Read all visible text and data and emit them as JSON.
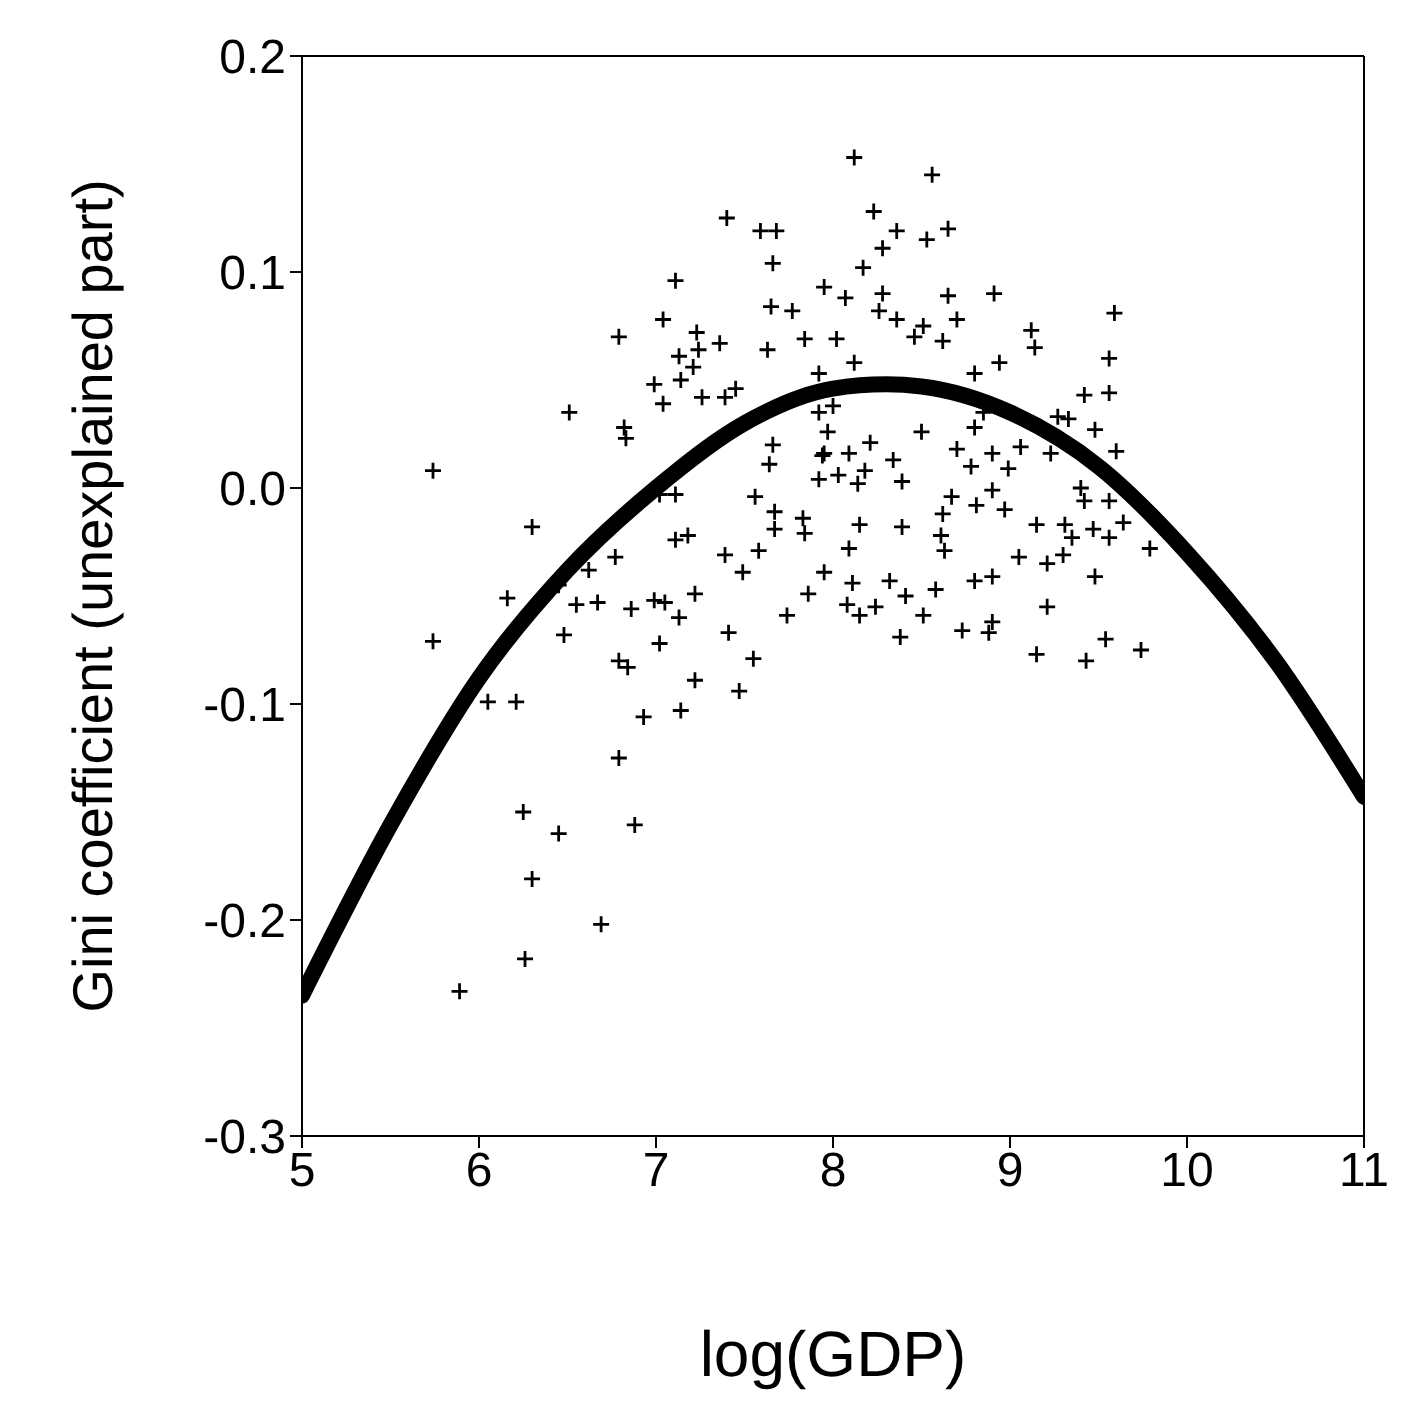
{
  "chart_data": {
    "type": "scatter",
    "xlabel": "log(GDP)",
    "ylabel": "Gini coefficient (unexplained part)",
    "xlim": [
      5,
      11
    ],
    "xticks": [
      5,
      6,
      7,
      8,
      9,
      10,
      11
    ],
    "ylim": [
      -0.3,
      0.2
    ],
    "yticks": [
      -0.3,
      -0.2,
      -0.1,
      {
        "value": 0,
        "label": "0.0"
      },
      0.1,
      0.2
    ],
    "series": [
      {
        "color": "#000000",
        "marker": "cross",
        "x": [
          7.4,
          7.59,
          7.68,
          7.66,
          7.11,
          7.95,
          7.65,
          7.77,
          7.04,
          6.79,
          7.23,
          7.84,
          7.63,
          7.36,
          7.13,
          7.24,
          7.21,
          6.99,
          7.14,
          7.04,
          7.26,
          7.39,
          7.45,
          6.51,
          6.82,
          6.83,
          7.92,
          7.92,
          7.66,
          7.64,
          7.95,
          7.92,
          8.03,
          5.74,
          7.02,
          7.11,
          7.56,
          7.67,
          7.67,
          7.83,
          7.84,
          7.11,
          7.18,
          6.3,
          6.77,
          6.62,
          7.39,
          7.49,
          7.58,
          7.95,
          7.86,
          7.74,
          6.16,
          6.45,
          6.55,
          6.67,
          6.86,
          6.99,
          7.05,
          7.22,
          7.13,
          6.48,
          5.74,
          7.02,
          7.41,
          6.79,
          6.84,
          7.22,
          7.55,
          7.47,
          6.05,
          6.21,
          6.93,
          7.14,
          6.79,
          6.25,
          6.88,
          6.45,
          6.3,
          6.69,
          6.26,
          5.89,
          8.12,
          8.56,
          8.23,
          8.36,
          8.28,
          8.53,
          8.65,
          8.17,
          8.07,
          8.28,
          8.26,
          8.65,
          8.91,
          8.36,
          8.51,
          8.46,
          8.7,
          8.62,
          8.02,
          9.12,
          9.14,
          9.59,
          9.56,
          8.94,
          8.12,
          8.8,
          9.42,
          9.56,
          8.0,
          8.85,
          9.27,
          9.33,
          8.5,
          8.8,
          9.48,
          8.21,
          7.97,
          7.94,
          8.09,
          8.7,
          8.9,
          9.06,
          9.23,
          9.6,
          8.14,
          8.18,
          8.34,
          8.39,
          8.78,
          8.99,
          8.9,
          8.67,
          8.62,
          8.81,
          8.97,
          9.4,
          9.42,
          9.56,
          8.15,
          8.39,
          8.61,
          8.63,
          9.15,
          9.31,
          9.35,
          9.47,
          9.56,
          9.64,
          9.79,
          8.09,
          9.05,
          9.21,
          9.3,
          8.11,
          8.32,
          8.41,
          8.58,
          8.8,
          8.9,
          9.48,
          8.08,
          8.15,
          8.24,
          8.51,
          9.21,
          8.38,
          8.73,
          8.88,
          8.9,
          9.15,
          9.43,
          9.54,
          9.74
        ],
        "values": [
          0.125,
          0.119,
          0.119,
          0.104,
          0.096,
          0.093,
          0.084,
          0.082,
          0.078,
          0.07,
          0.072,
          0.069,
          0.064,
          0.067,
          0.061,
          0.064,
          0.056,
          0.048,
          0.05,
          0.039,
          0.042,
          0.042,
          0.046,
          0.035,
          0.028,
          0.023,
          0.053,
          0.035,
          0.02,
          0.011,
          0.016,
          0.004,
          0.006,
          0.008,
          -0.003,
          -0.003,
          -0.004,
          -0.011,
          -0.019,
          -0.014,
          -0.021,
          -0.024,
          -0.022,
          -0.018,
          -0.032,
          -0.038,
          -0.031,
          -0.039,
          -0.029,
          -0.039,
          -0.049,
          -0.059,
          -0.051,
          -0.045,
          -0.054,
          -0.053,
          -0.056,
          -0.052,
          -0.053,
          -0.049,
          -0.06,
          -0.068,
          -0.071,
          -0.072,
          -0.067,
          -0.08,
          -0.083,
          -0.089,
          -0.079,
          -0.094,
          -0.099,
          -0.099,
          -0.106,
          -0.103,
          -0.125,
          -0.15,
          -0.156,
          -0.16,
          -0.181,
          -0.202,
          -0.218,
          -0.233,
          0.153,
          0.145,
          0.128,
          0.119,
          0.111,
          0.115,
          0.12,
          0.102,
          0.088,
          0.09,
          0.082,
          0.089,
          0.09,
          0.078,
          0.075,
          0.07,
          0.078,
          0.068,
          0.069,
          0.073,
          0.065,
          0.081,
          0.06,
          0.058,
          0.058,
          0.053,
          0.043,
          0.044,
          0.038,
          0.035,
          0.033,
          0.032,
          0.026,
          0.028,
          0.027,
          0.021,
          0.026,
          0.015,
          0.016,
          0.018,
          0.016,
          0.019,
          0.016,
          0.017,
          0.002,
          0.008,
          0.013,
          0.003,
          0.01,
          0.009,
          -0.001,
          -0.004,
          -0.012,
          -0.008,
          -0.01,
          0.0,
          -0.006,
          -0.006,
          -0.017,
          -0.018,
          -0.022,
          -0.029,
          -0.017,
          -0.017,
          -0.023,
          -0.019,
          -0.023,
          -0.016,
          -0.028,
          -0.028,
          -0.032,
          -0.035,
          -0.031,
          -0.044,
          -0.043,
          -0.05,
          -0.047,
          -0.043,
          -0.041,
          -0.041,
          -0.054,
          -0.059,
          -0.055,
          -0.059,
          -0.055,
          -0.069,
          -0.066,
          -0.067,
          -0.062,
          -0.077,
          -0.08,
          -0.07,
          -0.075
        ]
      },
      {
        "type": "line",
        "color": "#000000",
        "marker": "none",
        "x": [
          5,
          5.5,
          6,
          6.5,
          7,
          7.5,
          8,
          8.3,
          8.5,
          9,
          9.5,
          10,
          10.5,
          11
        ],
        "values": [
          -0.235,
          -0.156,
          -0.088,
          -0.038,
          0.0,
          0.03,
          0.046,
          0.048,
          0.047,
          0.035,
          0.01,
          -0.03,
          -0.08,
          -0.143
        ]
      }
    ]
  }
}
